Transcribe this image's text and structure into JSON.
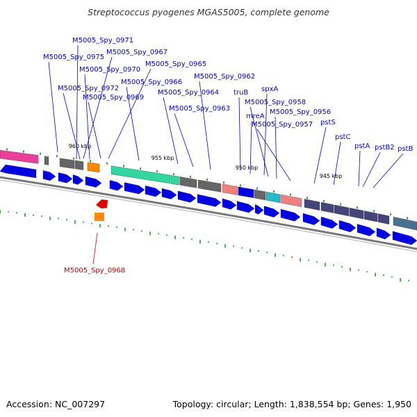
{
  "title": "Streptococcus pyogenes MGAS5005, complete genome",
  "footer": {
    "accession": "Accession: NC_007297",
    "topology": "Topology: circular; Length: 1,838,554 bp; Genes: 1,950"
  },
  "colors": {
    "forward": "#0000e0",
    "red_feature": "#dd0000",
    "orange_feature": "#ff8800",
    "green_feature": "#33d6a0",
    "gray_feature": "#666666",
    "salmon_feature": "#f08080",
    "cyan_feature": "#22bbcc",
    "navy_feature": "#45457a",
    "magenta_feature": "#e8409a",
    "label": "#0000cc",
    "label_highlight": "#cc0000"
  },
  "kbp_labels": [
    "960 kbp",
    "955 kbp",
    "950 kbp",
    "945 kbp"
  ],
  "gene_labels": [
    "M5005_Spy_0971",
    "M5005_Spy_0975",
    "M5005_Spy_0967",
    "M5005_Spy_0970",
    "M5005_Spy_0965",
    "M5005_Spy_0972",
    "M5005_Spy_0966",
    "M5005_Spy_0962",
    "M5005_Spy_0969",
    "truB",
    "spxA",
    "M5005_Spy_0964",
    "M5005_Spy_0958",
    "mreA",
    "M5005_Spy_0963",
    "M5005_Spy_0956",
    "M5005_Spy_0957",
    "pstS",
    "pstC",
    "pstA",
    "pstB2",
    "pstB"
  ],
  "highlight_label": "M5005_Spy_0968"
}
